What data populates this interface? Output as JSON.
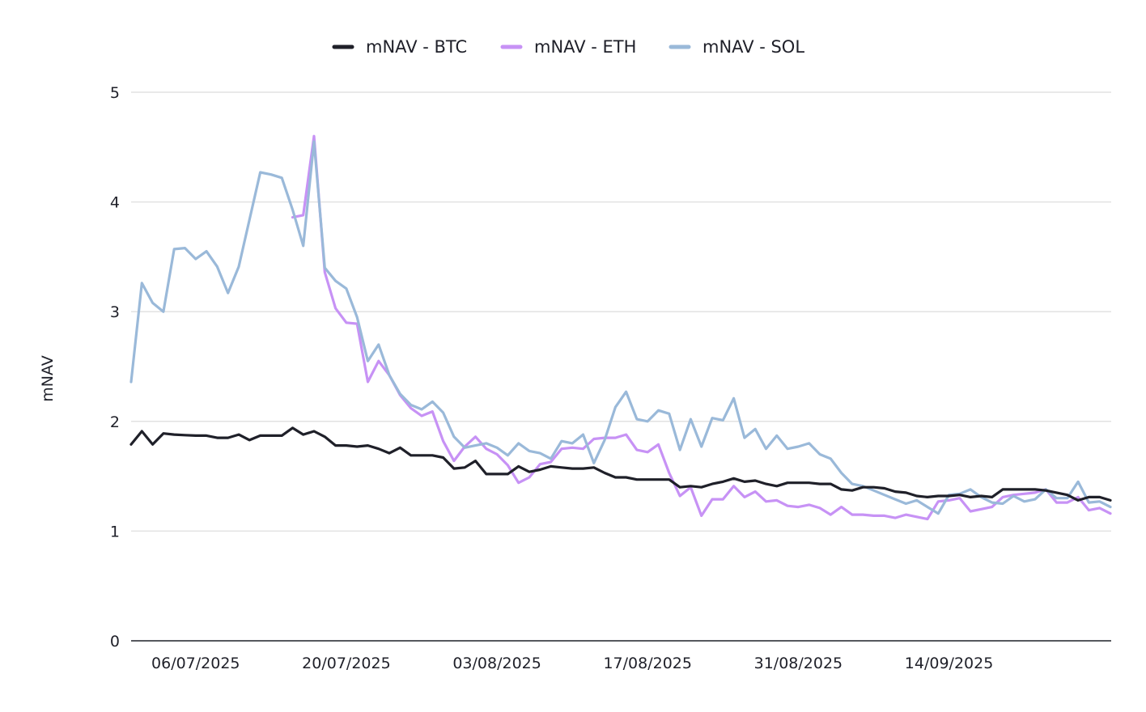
{
  "chart_data": {
    "type": "line",
    "title": "",
    "xlabel": "",
    "ylabel": "mNAV",
    "ylim": [
      0,
      5
    ],
    "y_ticks": [
      "0",
      "1",
      "2",
      "3",
      "4",
      "5"
    ],
    "y_tick_values": [
      0,
      1,
      2,
      3,
      4,
      5
    ],
    "x_start": "30/06/2025",
    "x_step_days": 1,
    "x_tick_labels": [
      "06/07/2025",
      "20/07/2025",
      "03/08/2025",
      "17/08/2025",
      "31/08/2025",
      "14/09/2025"
    ],
    "x_tick_indices": [
      6,
      20,
      34,
      48,
      62,
      76
    ],
    "grid": true,
    "legend_position": "top-center",
    "series": [
      {
        "name": "mNAV - BTC",
        "color": "#1f2029",
        "values": [
          1.79,
          1.91,
          1.79,
          1.89,
          1.88,
          1.875,
          1.87,
          1.87,
          1.85,
          1.85,
          1.88,
          1.83,
          1.87,
          1.87,
          1.87,
          1.94,
          1.88,
          1.91,
          1.86,
          1.78,
          1.78,
          1.77,
          1.78,
          1.75,
          1.71,
          1.76,
          1.69,
          1.69,
          1.69,
          1.67,
          1.57,
          1.58,
          1.64,
          1.52,
          1.52,
          1.52,
          1.59,
          1.54,
          1.56,
          1.59,
          1.58,
          1.57,
          1.57,
          1.58,
          1.53,
          1.49,
          1.49,
          1.47,
          1.47,
          1.47,
          1.47,
          1.4,
          1.41,
          1.4,
          1.43,
          1.45,
          1.48,
          1.45,
          1.46,
          1.43,
          1.41,
          1.44,
          1.44,
          1.44,
          1.43,
          1.43,
          1.38,
          1.37,
          1.4,
          1.4,
          1.39,
          1.36,
          1.35,
          1.32,
          1.31,
          1.32,
          1.32,
          1.33,
          1.31,
          1.32,
          1.31,
          1.38,
          1.38,
          1.38,
          1.38,
          1.37,
          1.35,
          1.33,
          1.28,
          1.31,
          1.31,
          1.28
        ]
      },
      {
        "name": "mNAV - ETH",
        "color": "#c792f5",
        "values": [
          null,
          null,
          null,
          null,
          null,
          null,
          null,
          null,
          null,
          null,
          null,
          null,
          null,
          null,
          null,
          3.86,
          3.88,
          4.6,
          3.36,
          3.03,
          2.9,
          2.89,
          2.36,
          2.55,
          2.42,
          2.24,
          2.12,
          2.05,
          2.09,
          1.82,
          1.64,
          1.77,
          1.86,
          1.75,
          1.7,
          1.6,
          1.44,
          1.49,
          1.61,
          1.63,
          1.75,
          1.76,
          1.75,
          1.84,
          1.85,
          1.85,
          1.88,
          1.74,
          1.72,
          1.79,
          1.53,
          1.32,
          1.4,
          1.14,
          1.29,
          1.29,
          1.41,
          1.31,
          1.36,
          1.27,
          1.28,
          1.23,
          1.22,
          1.24,
          1.21,
          1.15,
          1.22,
          1.15,
          1.15,
          1.14,
          1.14,
          1.12,
          1.15,
          1.13,
          1.11,
          1.27,
          1.28,
          1.3,
          1.18,
          1.2,
          1.22,
          1.31,
          1.33,
          1.34,
          1.35,
          1.38,
          1.26,
          1.26,
          1.31,
          1.19,
          1.21,
          1.16
        ]
      },
      {
        "name": "mNAV - SOL",
        "color": "#9ab9d9",
        "values": [
          2.36,
          3.26,
          3.08,
          3.0,
          3.57,
          3.58,
          3.48,
          3.55,
          3.41,
          3.17,
          3.41,
          3.84,
          4.27,
          4.25,
          4.22,
          3.93,
          3.6,
          4.55,
          3.4,
          3.28,
          3.21,
          2.95,
          2.55,
          2.7,
          2.42,
          2.25,
          2.15,
          2.11,
          2.18,
          2.08,
          1.86,
          1.76,
          1.78,
          1.8,
          1.76,
          1.69,
          1.8,
          1.73,
          1.71,
          1.66,
          1.82,
          1.8,
          1.88,
          1.62,
          1.83,
          2.13,
          2.27,
          2.02,
          2.0,
          2.1,
          2.07,
          1.74,
          2.02,
          1.77,
          2.03,
          2.01,
          2.21,
          1.85,
          1.93,
          1.75,
          1.87,
          1.75,
          1.77,
          1.8,
          1.7,
          1.66,
          1.53,
          1.43,
          1.41,
          1.37,
          1.33,
          1.29,
          1.25,
          1.28,
          1.22,
          1.16,
          1.33,
          1.34,
          1.38,
          1.31,
          1.26,
          1.25,
          1.32,
          1.27,
          1.29,
          1.38,
          1.3,
          1.3,
          1.45,
          1.26,
          1.27,
          1.22
        ]
      }
    ]
  }
}
